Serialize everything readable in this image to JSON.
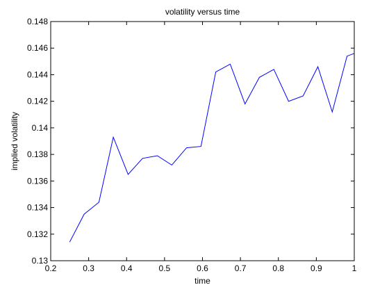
{
  "chart_data": {
    "type": "line",
    "title": "volatility versus time",
    "xlabel": "time",
    "ylabel": "implied volatility",
    "xlim": [
      0.2,
      1.0
    ],
    "ylim": [
      0.13,
      0.148
    ],
    "xticks": [
      "0.2",
      "0.3",
      "0.4",
      "0.5",
      "0.6",
      "0.7",
      "0.8",
      "0.9",
      "1"
    ],
    "yticks": [
      "0.13",
      "0.132",
      "0.134",
      "0.136",
      "0.138",
      "0.14",
      "0.142",
      "0.144",
      "0.146",
      "0.148"
    ],
    "grid": false,
    "series": [
      {
        "color": "#0000ff",
        "x": [
          0.25,
          0.288,
          0.327,
          0.365,
          0.404,
          0.442,
          0.481,
          0.519,
          0.558,
          0.596,
          0.635,
          0.673,
          0.712,
          0.75,
          0.788,
          0.827,
          0.865,
          0.904,
          0.942,
          0.981,
          1.0
        ],
        "y": [
          0.1314,
          0.1335,
          0.1344,
          0.1393,
          0.1365,
          0.1377,
          0.1379,
          0.1372,
          0.1385,
          0.1386,
          0.1442,
          0.1448,
          0.1418,
          0.1438,
          0.1444,
          0.142,
          0.1424,
          0.1446,
          0.1412,
          0.1454,
          0.1456
        ]
      }
    ]
  }
}
